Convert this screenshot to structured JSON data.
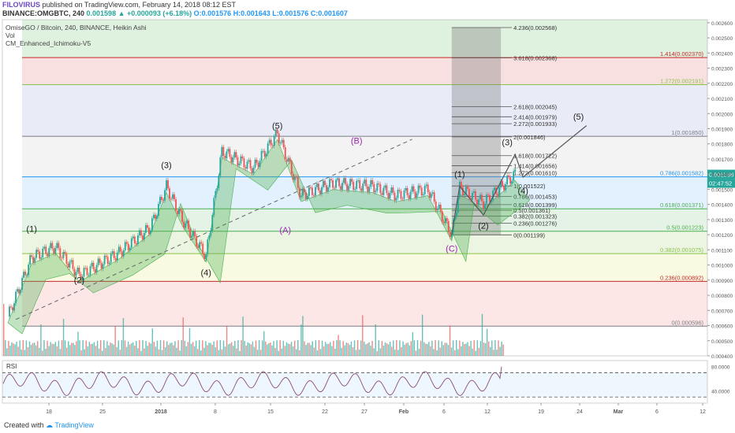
{
  "header": {
    "author": "FILOVIRUS",
    "publish_text": "published on TradingView.com, February 14, 2018 08:12 EST",
    "symbol_line": "BINANCE:OMGBTC, 240",
    "last": "0.001598",
    "change": "+0.000093 (+6.18%)",
    "open": "O:0.001576",
    "high": "H:0.001643",
    "low": "L:0.001576",
    "close": "C:0.001607"
  },
  "legend": {
    "series_title": "OmiseGO / Bitcoin, 240, BINANCE, Heikin Ashi",
    "vol": "Vol",
    "indicator": "CM_Enhanced_Ichimoku-V5"
  },
  "price_axis": {
    "last_price_label": "0.001598",
    "timer_label": "02:47:52",
    "ticks": [
      "0.002600",
      "0.002500",
      "0.002400",
      "0.002300",
      "0.002200",
      "0.002100",
      "0.002000",
      "0.001900",
      "0.001800",
      "0.001700",
      "0.001600",
      "0.001500",
      "0.001400",
      "0.001300",
      "0.001200",
      "0.001100",
      "0.001000",
      "0.000900",
      "0.000800",
      "0.000700",
      "0.000600",
      "0.000500",
      "0.000400"
    ]
  },
  "rsi": {
    "label": "RSI",
    "ticks": [
      "80.0000",
      "40.0000"
    ]
  },
  "x_axis": {
    "ticks": [
      "18",
      "25",
      "2018",
      "8",
      "15",
      "22",
      "27",
      "Feb",
      "6",
      "12",
      "19",
      "24",
      "Mar",
      "6",
      "12"
    ]
  },
  "footer": {
    "created_with": "Created with",
    "brand": "TradingView"
  },
  "chart_data": {
    "type": "candlestick",
    "title": "OmiseGO / Bitcoin, 240, BINANCE, Heikin Ashi",
    "series": [
      {
        "name": "Vol"
      },
      {
        "name": "CM_Enhanced_Ichimoku-V5"
      }
    ],
    "ylim": [
      0.0004,
      0.00262
    ],
    "colors": {
      "up": "#26a69a",
      "down": "#ef5350",
      "cloud": "#4caf50",
      "rsi": "#8c4a79"
    },
    "price_path": [
      {
        "x": "Dec 12",
        "y": 0.00066
      },
      {
        "x": "Dec 15",
        "y": 0.00105
      },
      {
        "x": "Dec 18",
        "y": 0.00112
      },
      {
        "x": "Dec 21",
        "y": 0.00093
      },
      {
        "x": "Dec 26",
        "y": 0.00108
      },
      {
        "x": "Dec 30",
        "y": 0.00125
      },
      {
        "x": "Jan 1",
        "y": 0.00152
      },
      {
        "x": "Jan 3",
        "y": 0.0013
      },
      {
        "x": "Jan 6",
        "y": 0.00106
      },
      {
        "x": "Jan 8",
        "y": 0.00175
      },
      {
        "x": "Jan 12",
        "y": 0.00164
      },
      {
        "x": "Jan 15",
        "y": 0.00187
      },
      {
        "x": "Jan 18",
        "y": 0.00146
      },
      {
        "x": "Jan 22",
        "y": 0.00154
      },
      {
        "x": "Jan 27",
        "y": 0.00152
      },
      {
        "x": "Jan 30",
        "y": 0.00146
      },
      {
        "x": "Feb 3",
        "y": 0.0015
      },
      {
        "x": "Feb 6",
        "y": 0.0012
      },
      {
        "x": "Feb 7",
        "y": 0.00151
      },
      {
        "x": "Feb 10",
        "y": 0.00141
      },
      {
        "x": "Feb 14",
        "y": 0.0016
      }
    ],
    "wave_labels": [
      {
        "text": "(1)",
        "x": "Dec 15",
        "y": 0.00122
      },
      {
        "text": "(2)",
        "x": "Dec 21",
        "y": 0.00088
      },
      {
        "text": "(3)",
        "x": "Jan 1",
        "y": 0.00164
      },
      {
        "text": "(4)",
        "x": "Jan 6",
        "y": 0.00093
      },
      {
        "text": "(5)",
        "x": "Jan 15",
        "y": 0.0019
      },
      {
        "text": "(A)",
        "x": "Jan 16",
        "y": 0.00121
      },
      {
        "text": "(B)",
        "x": "Jan 25",
        "y": 0.0018
      },
      {
        "text": "(C)",
        "x": "Feb 6",
        "y": 0.00109
      },
      {
        "text": "(1)",
        "x": "Feb 7",
        "y": 0.00158
      },
      {
        "text": "(2)",
        "x": "Feb 10",
        "y": 0.00124
      },
      {
        "text": "(3)",
        "x": "Feb 13",
        "y": 0.00179
      },
      {
        "text": "(4)",
        "x": "Feb 15",
        "y": 0.00147
      },
      {
        "text": "(5)",
        "x": "Feb 22",
        "y": 0.00196
      }
    ],
    "projection_path": [
      {
        "x": "Feb 6",
        "y": 0.0012
      },
      {
        "x": "Feb 7",
        "y": 0.00152
      },
      {
        "x": "Feb 10",
        "y": 0.00133
      },
      {
        "x": "Feb 14",
        "y": 0.00173
      },
      {
        "x": "Feb 15",
        "y": 0.00158
      },
      {
        "x": "Feb 23",
        "y": 0.00192
      }
    ],
    "trendline": [
      {
        "x": "Dec 13",
        "y": 0.00064
      },
      {
        "x": "Feb 1",
        "y": 0.00183
      }
    ],
    "fib_retracement": [
      {
        "level": "1",
        "value": 0.00185,
        "label": "1(0.001850)",
        "color": "#787b86"
      },
      {
        "level": "0.786",
        "value": 0.001582,
        "label": "0.786(0.001582)",
        "color": "#2196f3"
      },
      {
        "level": "0.618",
        "value": 0.001371,
        "label": "0.618(0.001371)",
        "color": "#4caf50"
      },
      {
        "level": "0.5",
        "value": 0.001223,
        "label": "0.5(0.001223)",
        "color": "#4caf50"
      },
      {
        "level": "0.382",
        "value": 0.001075,
        "label": "0.382(0.001075)",
        "color": "#8bc34a"
      },
      {
        "level": "0.236",
        "value": 0.000892,
        "label": "0.236(0.000892)",
        "color": "#c62828"
      },
      {
        "level": "0",
        "value": 0.000596,
        "label": "0(0.000596)",
        "color": "#787b86"
      },
      {
        "level": "1.272",
        "value": 0.002191,
        "label": "1.272(0.002191)",
        "color": "#8bc34a"
      },
      {
        "level": "1.414",
        "value": 0.00237,
        "label": "1.414(0.002370)",
        "color": "#c62828"
      }
    ],
    "fib_extension": [
      {
        "label": "0(0.001199)",
        "value": 0.001199
      },
      {
        "label": "0.236(0.001276)",
        "value": 0.001276
      },
      {
        "label": "0.382(0.001323)",
        "value": 0.001323
      },
      {
        "label": "0.5(0.001361)",
        "value": 0.001361
      },
      {
        "label": "0.618(0.001399)",
        "value": 0.001399
      },
      {
        "label": "0.786(0.001453)",
        "value": 0.001453
      },
      {
        "label": "1(0.001522)",
        "value": 0.001522
      },
      {
        "label": "1.272(0.001610)",
        "value": 0.00161
      },
      {
        "label": "1.414(0.001656)",
        "value": 0.001656
      },
      {
        "label": "1.618(0.001722)",
        "value": 0.001722
      },
      {
        "label": "2(0.001846)",
        "value": 0.001846
      },
      {
        "label": "2.272(0.001933)",
        "value": 0.001933
      },
      {
        "label": "2.414(0.001979)",
        "value": 0.001979
      },
      {
        "label": "2.618(0.002045)",
        "value": 0.002045
      },
      {
        "label": "3.618(0.002368)",
        "value": 0.002368
      },
      {
        "label": "4.236(0.002568)",
        "value": 0.002568
      }
    ],
    "rsi_last": 80,
    "rsi_guides": [
      70,
      30
    ]
  }
}
